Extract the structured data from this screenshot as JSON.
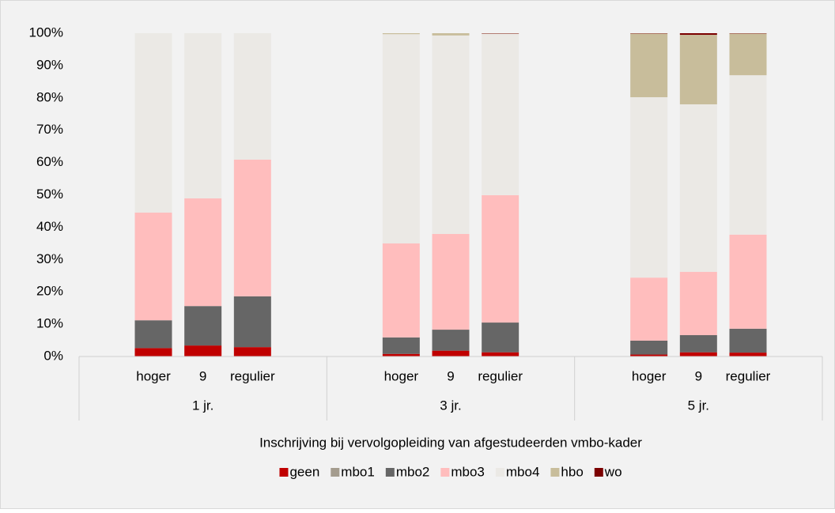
{
  "chart_data": {
    "type": "stacked_bar",
    "xlabel": "Inschrijving bij vervolgopleiding van afgestudeerden vmbo-kader",
    "groups": [
      "1 jr.",
      "3 jr.",
      "5 jr."
    ],
    "categories": [
      "hoger",
      "9",
      "regulier",
      "hoger",
      "9",
      "regulier",
      "hoger",
      "9",
      "regulier"
    ],
    "series": [
      {
        "name": "geen",
        "color": "#c00000",
        "values": [
          2.6,
          3.4,
          2.9,
          0.8,
          1.8,
          1.3,
          0.6,
          1.3,
          1.2
        ]
      },
      {
        "name": "mbo1",
        "color": "#a49c8e",
        "values": [
          0,
          0,
          0,
          0,
          0,
          0,
          0,
          0,
          0
        ]
      },
      {
        "name": "mbo2",
        "color": "#666666",
        "values": [
          8.6,
          12.2,
          15.7,
          5.1,
          6.5,
          9.2,
          4.3,
          5.3,
          7.4
        ]
      },
      {
        "name": "mbo3",
        "color": "#ffbdbd",
        "values": [
          33.3,
          33.3,
          42.3,
          29.1,
          29.6,
          39.4,
          19.5,
          19.6,
          29.1
        ]
      },
      {
        "name": "mbo4",
        "color": "#ebe9e5",
        "values": [
          55.5,
          51.1,
          39.1,
          64.7,
          61.4,
          49.9,
          55.8,
          51.8,
          49.3
        ]
      },
      {
        "name": "hbo",
        "color": "#c8bd9b",
        "values": [
          0,
          0,
          0,
          0.3,
          0.7,
          0.1,
          19.7,
          21.5,
          12.9
        ]
      },
      {
        "name": "wo",
        "color": "#7b0000",
        "values": [
          0,
          0,
          0,
          0,
          0,
          0.1,
          0.1,
          0.5,
          0.1
        ]
      }
    ],
    "ylim": [
      0,
      100
    ],
    "yticks": [
      {
        "value": 0,
        "label": "0%"
      },
      {
        "value": 10,
        "label": "10%"
      },
      {
        "value": 20,
        "label": "20%"
      },
      {
        "value": 30,
        "label": "30%"
      },
      {
        "value": 40,
        "label": "40%"
      },
      {
        "value": 50,
        "label": "50%"
      },
      {
        "value": 60,
        "label": "60%"
      },
      {
        "value": 70,
        "label": "70%"
      },
      {
        "value": 80,
        "label": "80%"
      },
      {
        "value": 90,
        "label": "90%"
      },
      {
        "value": 100,
        "label": "100%"
      }
    ],
    "legend": "bottom"
  }
}
